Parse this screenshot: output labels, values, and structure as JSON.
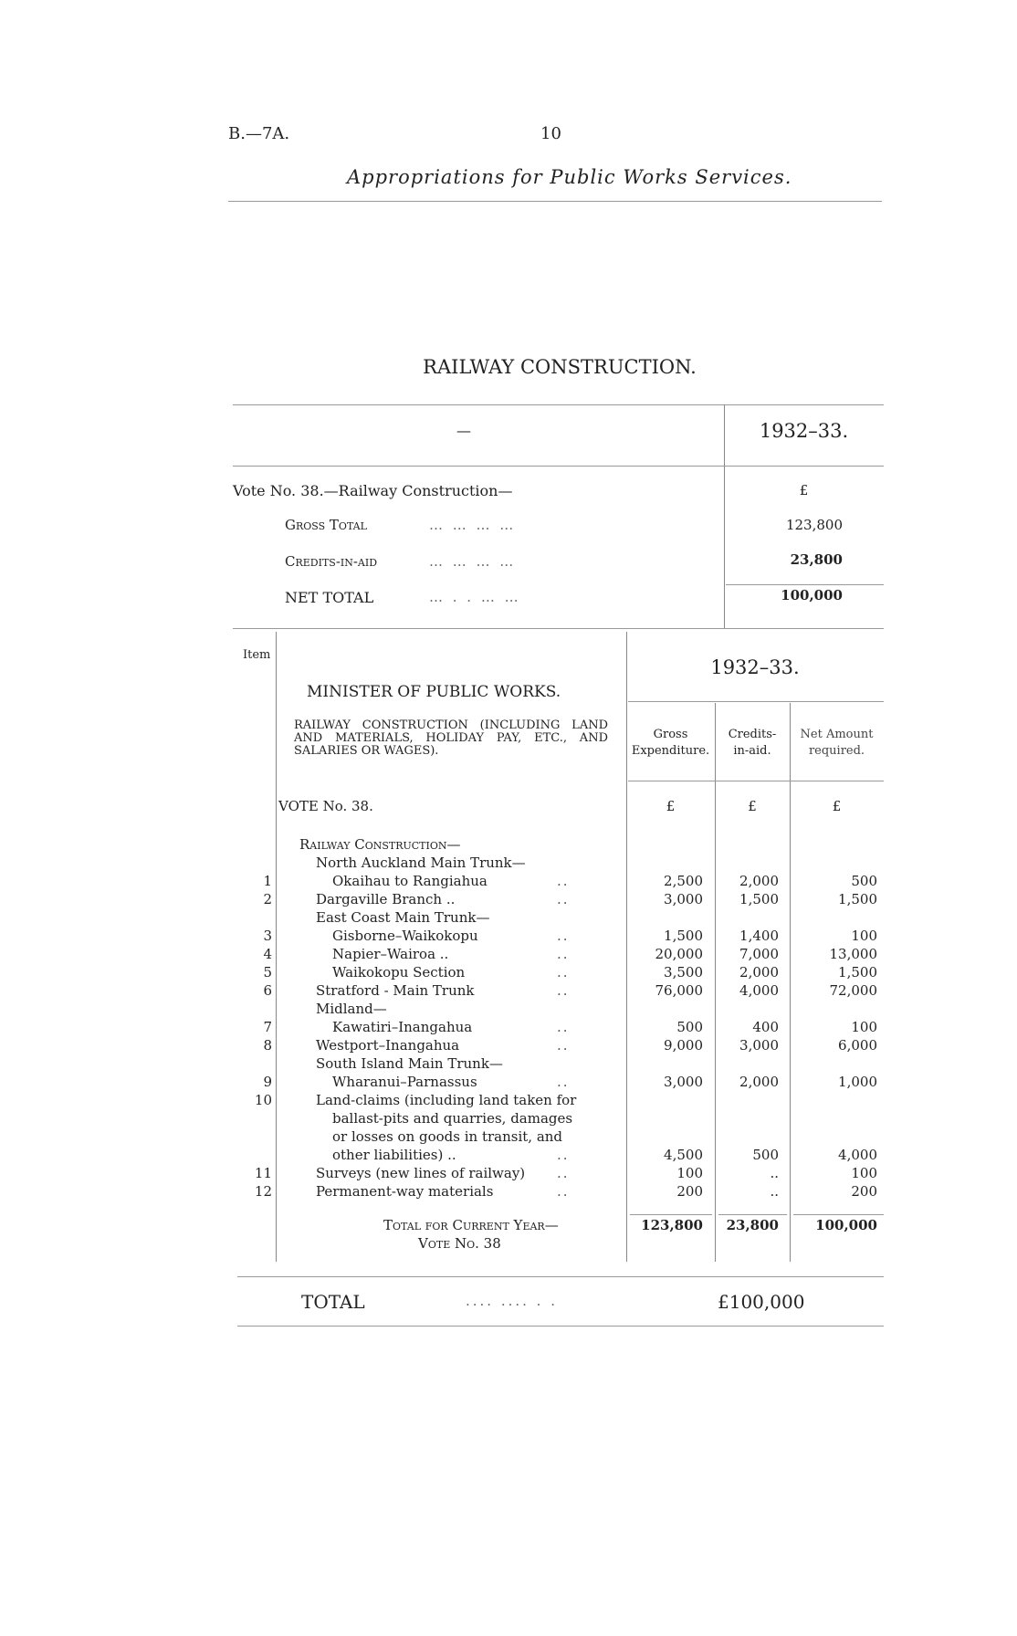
{
  "header": {
    "ref": "B.—7A.",
    "page": "10",
    "title": "Appropriations for Public Works Services."
  },
  "section_title": "RAILWAY CONSTRUCTION.",
  "summary": {
    "col_left": "—",
    "col_year": "1932–33.",
    "currency": "£",
    "vote": "Vote No. 38.—Railway Construction—",
    "rows": [
      {
        "label": "Gross Total",
        "value": "123,800"
      },
      {
        "label": "Credits-in-aid",
        "value": "23,800"
      },
      {
        "label": "NET TOTAL",
        "value": "100,000"
      }
    ]
  },
  "detail": {
    "item_header": "Item",
    "year": "1932–33.",
    "minister": "MINISTER OF PUBLIC WORKS.",
    "description": "RAILWAY CONSTRUCTION (INCLUDING LAND AND MATERIALS, HOLIDAY PAY, ETC., AND SALARIES OR WAGES).",
    "columns": [
      "Gross Expenditure.",
      "Credits-in-aid.",
      "Net Amount required."
    ],
    "vote": "VOTE No. 38.",
    "currency": [
      "£",
      "£",
      "£"
    ],
    "rows": [
      {
        "item": "",
        "label": "Railway Construction—",
        "indent": 0,
        "sc": true,
        "gross": "",
        "credits": "",
        "net": ""
      },
      {
        "item": "",
        "label": "North Auckland Main Trunk—",
        "indent": 1,
        "gross": "",
        "credits": "",
        "net": ""
      },
      {
        "item": "1",
        "label": "Okaihau to Rangiahua",
        "indent": 2,
        "gross": "2,500",
        "credits": "2,000",
        "net": "500"
      },
      {
        "item": "2",
        "label": "Dargaville Branch ..",
        "indent": 1,
        "gross": "3,000",
        "credits": "1,500",
        "net": "1,500"
      },
      {
        "item": "",
        "label": "East Coast Main Trunk—",
        "indent": 1,
        "gross": "",
        "credits": "",
        "net": ""
      },
      {
        "item": "3",
        "label": "Gisborne–Waikokopu",
        "indent": 2,
        "gross": "1,500",
        "credits": "1,400",
        "net": "100"
      },
      {
        "item": "4",
        "label": "Napier–Wairoa ..",
        "indent": 2,
        "gross": "20,000",
        "credits": "7,000",
        "net": "13,000"
      },
      {
        "item": "5",
        "label": "Waikokopu Section",
        "indent": 2,
        "gross": "3,500",
        "credits": "2,000",
        "net": "1,500"
      },
      {
        "item": "6",
        "label": "Stratford - Main Trunk",
        "indent": 1,
        "gross": "76,000",
        "credits": "4,000",
        "net": "72,000"
      },
      {
        "item": "",
        "label": "Midland—",
        "indent": 1,
        "gross": "",
        "credits": "",
        "net": ""
      },
      {
        "item": "7",
        "label": "Kawatiri–Inangahua",
        "indent": 2,
        "gross": "500",
        "credits": "400",
        "net": "100"
      },
      {
        "item": "8",
        "label": "Westport–Inangahua",
        "indent": 1,
        "gross": "9,000",
        "credits": "3,000",
        "net": "6,000"
      },
      {
        "item": "",
        "label": "South Island Main Trunk—",
        "indent": 1,
        "gross": "",
        "credits": "",
        "net": ""
      },
      {
        "item": "9",
        "label": "Wharanui–Parnassus",
        "indent": 2,
        "gross": "3,000",
        "credits": "2,000",
        "net": "1,000"
      },
      {
        "item": "10",
        "label": "Land-claims (including land taken for",
        "indent": 1,
        "gross": "",
        "credits": "",
        "net": ""
      },
      {
        "item": "",
        "label": "ballast-pits and quarries, damages",
        "indent": 2,
        "gross": "",
        "credits": "",
        "net": ""
      },
      {
        "item": "",
        "label": "or losses on goods in transit, and",
        "indent": 2,
        "gross": "",
        "credits": "",
        "net": ""
      },
      {
        "item": "",
        "label": "other liabilities) ..",
        "indent": 2,
        "gross": "4,500",
        "credits": "500",
        "net": "4,000"
      },
      {
        "item": "11",
        "label": "Surveys (new lines of railway)",
        "indent": 1,
        "gross": "100",
        "credits": "..",
        "net": "100"
      },
      {
        "item": "12",
        "label": "Permanent-way materials",
        "indent": 1,
        "gross": "200",
        "credits": "..",
        "net": "200"
      }
    ],
    "total_label_1": "Total for Current Year—",
    "total_label_2": "Vote No. 38",
    "total": {
      "gross": "123,800",
      "credits": "23,800",
      "net": "100,000"
    }
  },
  "grand_total": {
    "label": "TOTAL",
    "value": "£100,000"
  }
}
